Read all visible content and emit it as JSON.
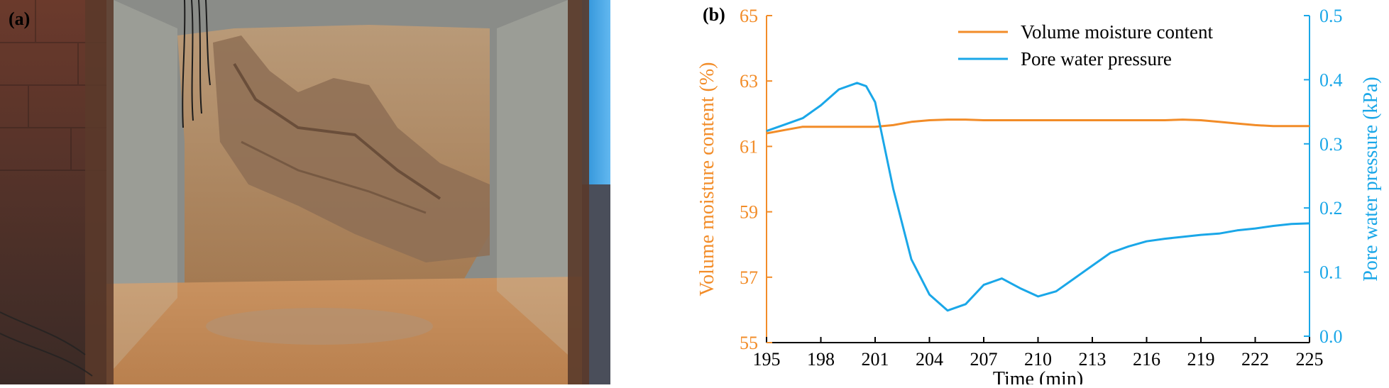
{
  "panels": {
    "a_label": "(a)",
    "b_label": "(b)"
  },
  "photo": {
    "description_icon": "soil-slope-flume-photo-icon"
  },
  "colors": {
    "left_axis": "#F28C28",
    "right_axis": "#1AA7E8",
    "series_moisture": "#F28C28",
    "series_pressure": "#1AA7E8"
  },
  "chart_data": {
    "type": "line",
    "xlabel": "Time (min)",
    "ylabel_left": "Volume moisture content (%)",
    "ylabel_right": "Pore water pressure (kPa)",
    "xlim": [
      195,
      225
    ],
    "xticks": [
      "195",
      "198",
      "201",
      "204",
      "207",
      "210",
      "213",
      "216",
      "219",
      "222",
      "225"
    ],
    "ylim_left": [
      55,
      65
    ],
    "yticks_left": [
      "55",
      "57",
      "59",
      "61",
      "63",
      "65"
    ],
    "ylim_right": [
      -0.01,
      0.5
    ],
    "yticks_right": [
      "0.0",
      "0.1",
      "0.2",
      "0.3",
      "0.4",
      "0.5"
    ],
    "legend_position": "top-center",
    "grid": false,
    "series": [
      {
        "name": "Volume moisture content",
        "axis": "left",
        "x": [
          195,
          196,
          197,
          198,
          199,
          200,
          201,
          202,
          203,
          204,
          205,
          206,
          207,
          208,
          209,
          210,
          211,
          212,
          213,
          214,
          215,
          216,
          217,
          218,
          219,
          220,
          221,
          222,
          223,
          224,
          225
        ],
        "y": [
          61.4,
          61.5,
          61.6,
          61.6,
          61.6,
          61.6,
          61.6,
          61.65,
          61.75,
          61.8,
          61.82,
          61.82,
          61.8,
          61.8,
          61.8,
          61.8,
          61.8,
          61.8,
          61.8,
          61.8,
          61.8,
          61.8,
          61.8,
          61.82,
          61.8,
          61.75,
          61.7,
          61.65,
          61.62,
          61.62,
          61.62
        ]
      },
      {
        "name": "Pore water pressure",
        "axis": "right",
        "x": [
          195,
          196,
          197,
          198,
          199,
          200,
          200.5,
          201,
          202,
          203,
          204,
          205,
          206,
          207,
          208,
          209,
          210,
          211,
          212,
          213,
          214,
          215,
          216,
          217,
          218,
          219,
          220,
          221,
          222,
          223,
          224,
          225
        ],
        "y": [
          0.32,
          0.33,
          0.34,
          0.36,
          0.385,
          0.395,
          0.39,
          0.365,
          0.23,
          0.12,
          0.065,
          0.04,
          0.05,
          0.08,
          0.09,
          0.075,
          0.062,
          0.07,
          0.09,
          0.11,
          0.13,
          0.14,
          0.148,
          0.152,
          0.155,
          0.158,
          0.16,
          0.165,
          0.168,
          0.172,
          0.175,
          0.176
        ]
      }
    ]
  }
}
